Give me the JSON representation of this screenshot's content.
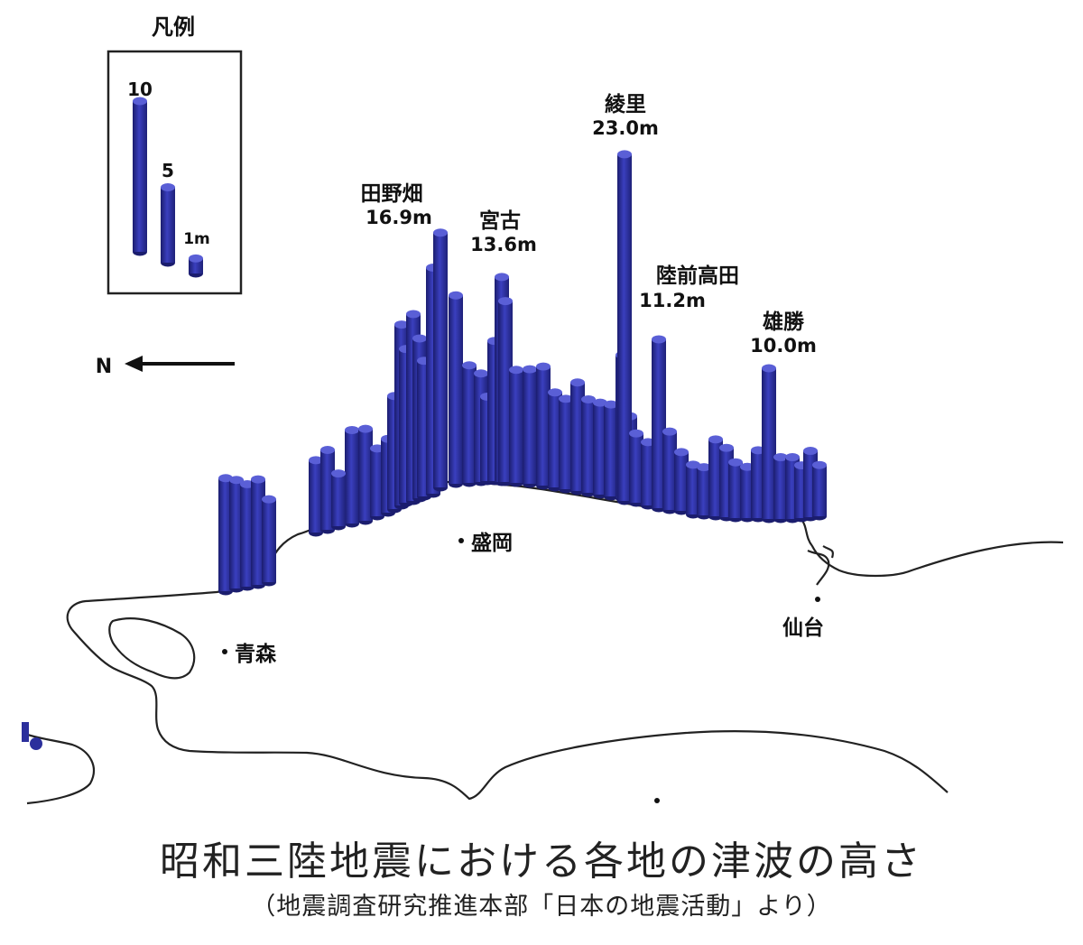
{
  "legend": {
    "title": "凡例",
    "items": [
      {
        "label": "10",
        "value": 10
      },
      {
        "label": "5",
        "value": 5
      },
      {
        "label": "1m",
        "value": 1
      }
    ]
  },
  "north_label": "N",
  "cities": [
    {
      "name": "盛岡"
    },
    {
      "name": "青森"
    },
    {
      "name": "仙台"
    }
  ],
  "annotations": [
    {
      "place": "田野畑",
      "height_label": "16.9m",
      "height": 16.9
    },
    {
      "place": "宮古",
      "height_label": "13.6m",
      "height": 13.6
    },
    {
      "place": "綾里",
      "height_label": "23.0m",
      "height": 23.0
    },
    {
      "place": "陸前高田",
      "height_label": "11.2m",
      "height": 11.2
    },
    {
      "place": "雄勝",
      "height_label": "10.0m",
      "height": 10.0
    }
  ],
  "bars_m": [
    7.5,
    7.2,
    6.8,
    7.0,
    5.5,
    4.8,
    5.3,
    6.2,
    3.5,
    6.1,
    4.5,
    4.9,
    7.5,
    12.0,
    10.2,
    12.4,
    10.6,
    9.0,
    15.0,
    16.9,
    12.5,
    7.8,
    7.2,
    5.6,
    9.3,
    13.6,
    12.0,
    7.5,
    7.6,
    7.9,
    6.3,
    6.0,
    7.2,
    6.2,
    6.1,
    6.1,
    9.5,
    5.5,
    23.0,
    4.6,
    4.2,
    11.2,
    5.2,
    3.9,
    3.3,
    3.2,
    5.1,
    4.6,
    3.7,
    3.4,
    4.5,
    10.0,
    4.1,
    4.1,
    3.5,
    4.4,
    3.4
  ],
  "colors": {
    "bar": "#2b2f9c",
    "bar_dark": "#1b1d6e",
    "bar_light": "#5a5fd6",
    "coast": "#222222"
  },
  "caption": {
    "title": "昭和三陸地震における各地の津波の高さ",
    "source": "（地震調査研究推進本部「日本の地震活動」より）"
  }
}
